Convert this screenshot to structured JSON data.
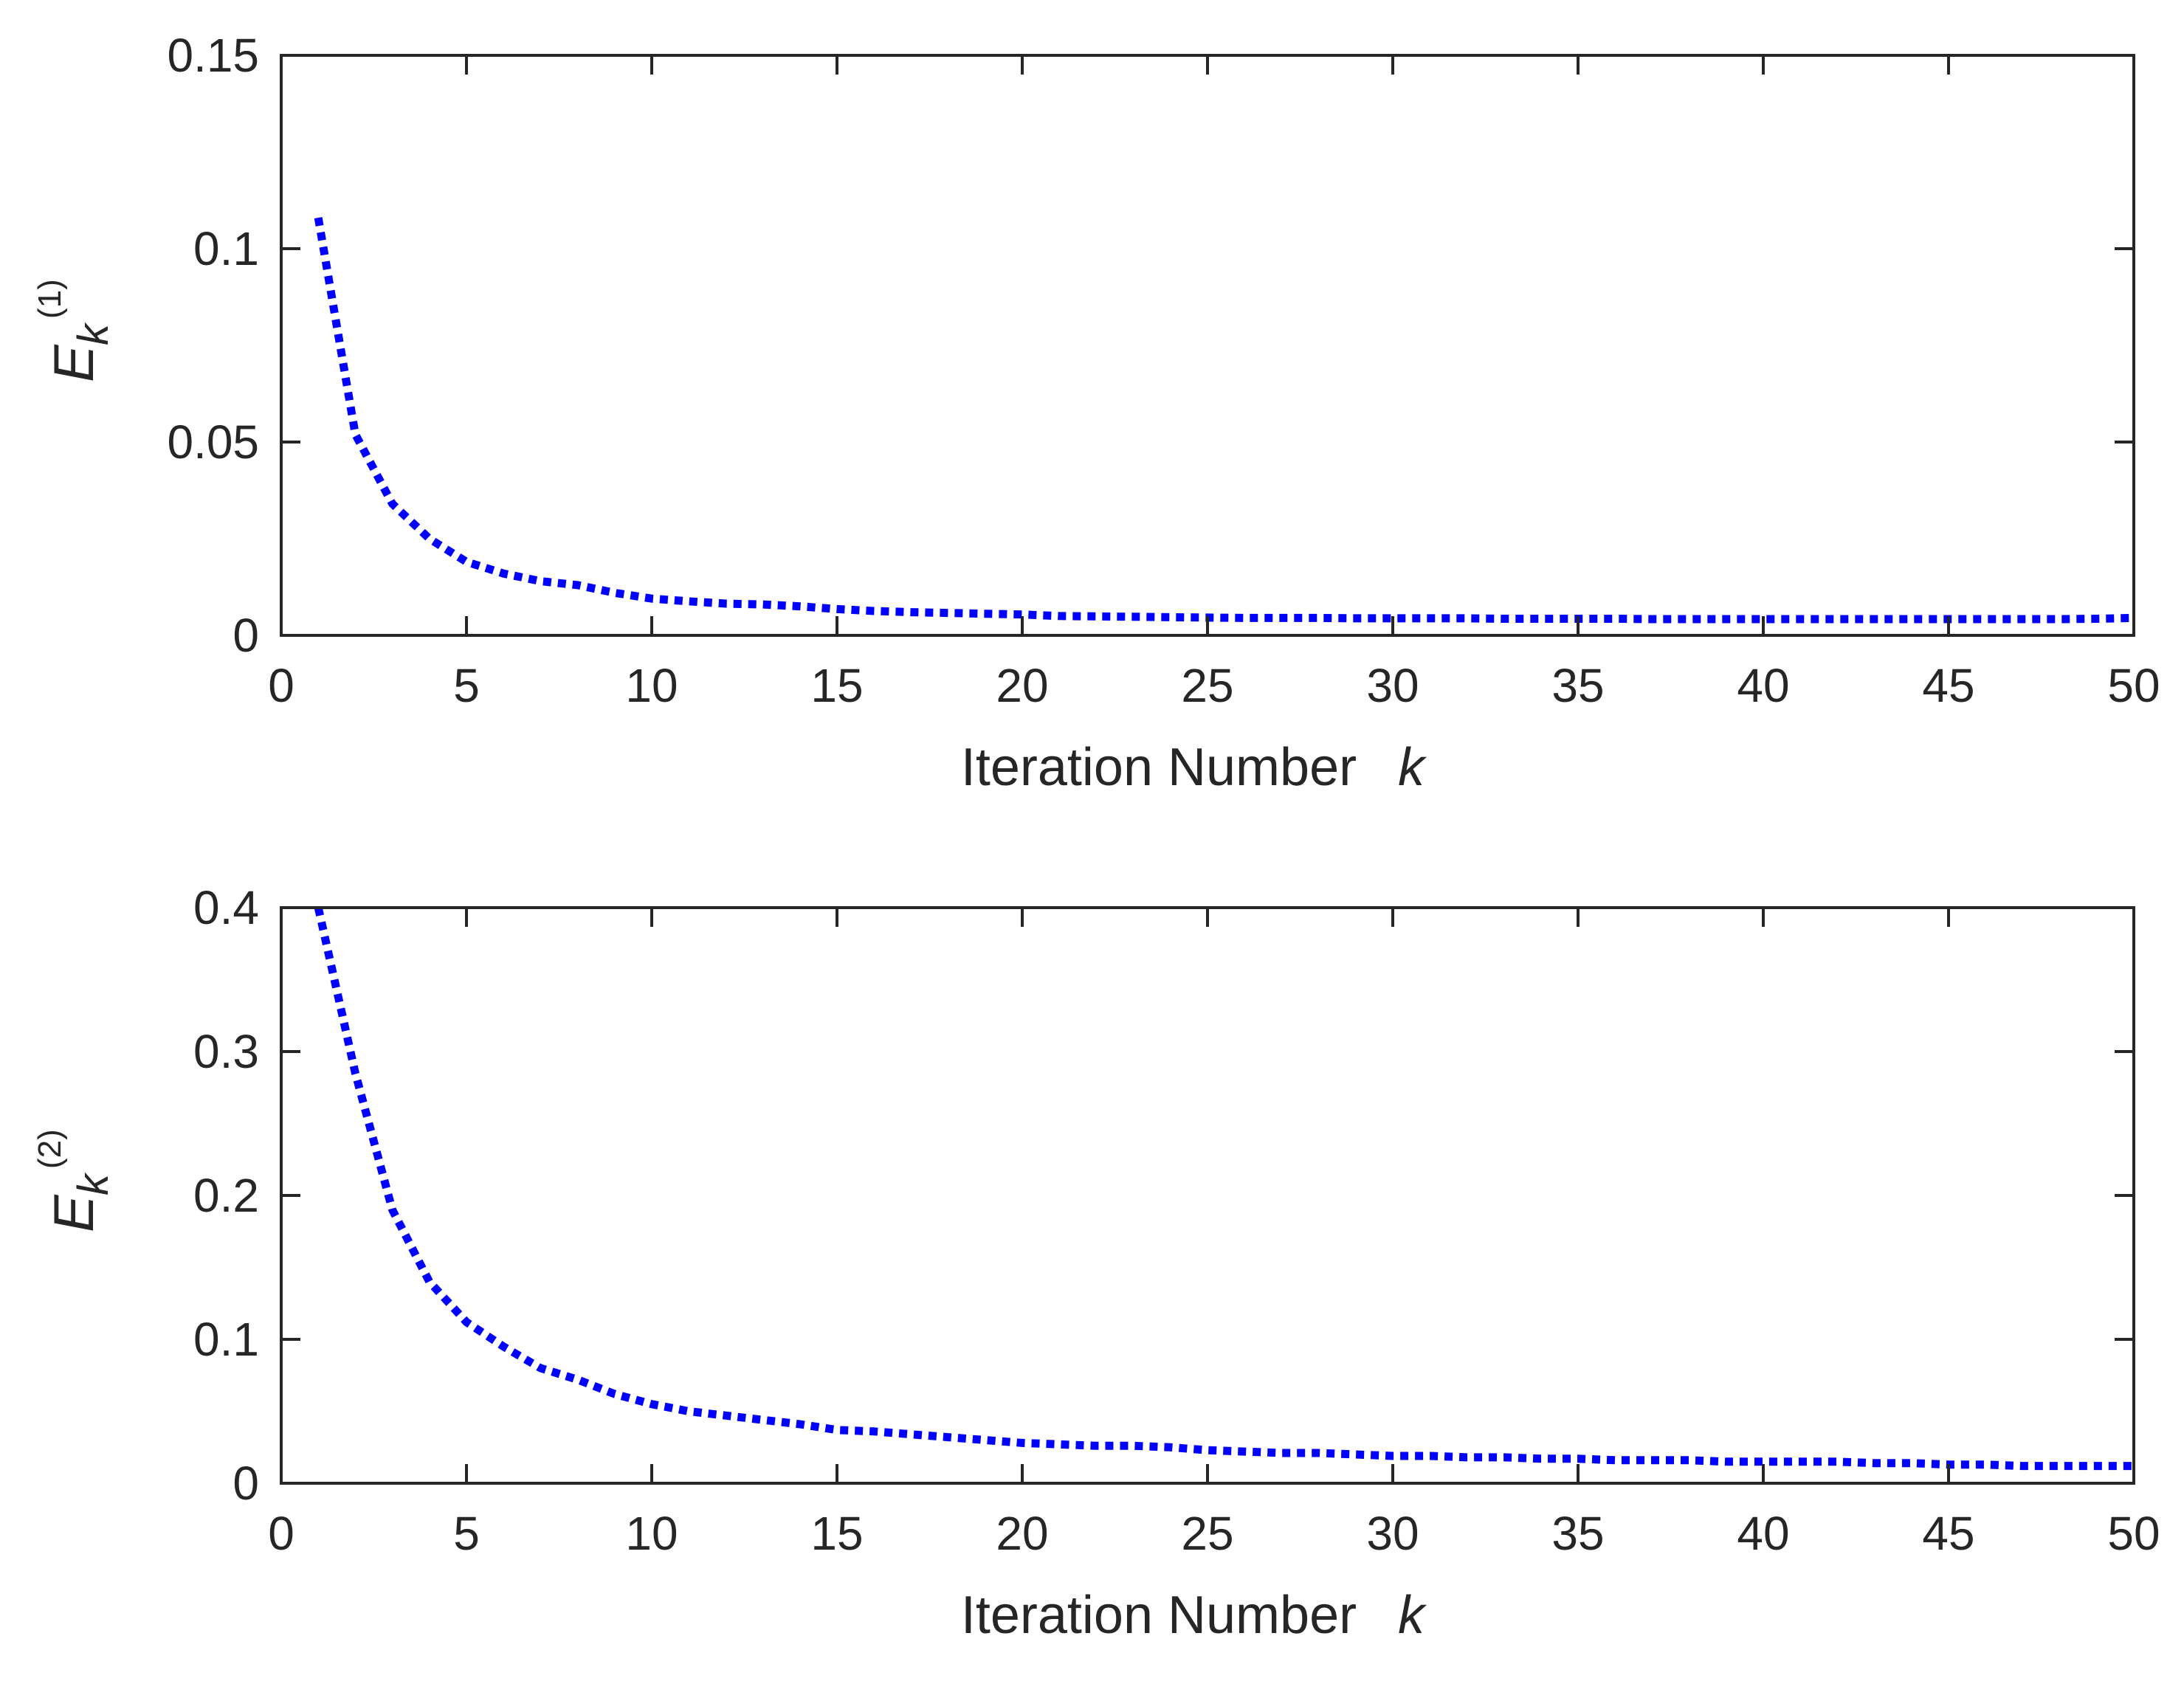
{
  "chart_data": [
    {
      "type": "line",
      "xlabel": "Iteration Number",
      "xlabel_var": "k",
      "ylabel": {
        "main": "E",
        "sub": "k",
        "sup": "(1)"
      },
      "xlim": [
        0,
        50
      ],
      "ylim": [
        0,
        0.15
      ],
      "xticks": [
        "0",
        "5",
        "10",
        "15",
        "20",
        "25",
        "30",
        "35",
        "40",
        "45",
        "50"
      ],
      "yticks": [
        "0",
        "0.05",
        "0.1",
        "0.15"
      ],
      "xtick_values": [
        0,
        5,
        10,
        15,
        20,
        25,
        30,
        35,
        40,
        45,
        50
      ],
      "ytick_values": [
        0,
        0.05,
        0.1,
        0.15
      ],
      "grid": false,
      "line_style": "dotted",
      "line_color": "#0000ff",
      "series": [
        {
          "x": [
            1,
            2,
            3,
            4,
            5,
            6,
            7,
            8,
            9,
            10,
            11,
            12,
            13,
            14,
            15,
            16,
            17,
            18,
            19,
            20,
            21,
            22,
            23,
            24,
            25,
            26,
            27,
            28,
            29,
            30,
            31,
            32,
            33,
            34,
            35,
            36,
            37,
            38,
            39,
            40,
            41,
            42,
            43,
            44,
            45,
            46,
            47,
            48,
            49,
            50
          ],
          "values": [
            0.108,
            0.052,
            0.034,
            0.025,
            0.019,
            0.016,
            0.014,
            0.013,
            0.011,
            0.0095,
            0.0088,
            0.0082,
            0.008,
            0.0075,
            0.0068,
            0.0063,
            0.006,
            0.0058,
            0.0056,
            0.0054,
            0.005,
            0.0049,
            0.0048,
            0.0047,
            0.0046,
            0.0045,
            0.0045,
            0.0045,
            0.0044,
            0.0044,
            0.0044,
            0.0044,
            0.0043,
            0.0043,
            0.0043,
            0.0043,
            0.0042,
            0.0042,
            0.0042,
            0.0042,
            0.0042,
            0.0042,
            0.0042,
            0.0042,
            0.0042,
            0.0042,
            0.0042,
            0.0042,
            0.0043,
            0.0045
          ]
        }
      ]
    },
    {
      "type": "line",
      "xlabel": "Iteration Number",
      "xlabel_var": "k",
      "ylabel": {
        "main": "E",
        "sub": "k",
        "sup": "(2)"
      },
      "xlim": [
        0,
        50
      ],
      "ylim": [
        0,
        0.4
      ],
      "xticks": [
        "0",
        "5",
        "10",
        "15",
        "20",
        "25",
        "30",
        "35",
        "40",
        "45",
        "50"
      ],
      "yticks": [
        "0",
        "0.1",
        "0.2",
        "0.3",
        "0.4"
      ],
      "xtick_values": [
        0,
        5,
        10,
        15,
        20,
        25,
        30,
        35,
        40,
        45,
        50
      ],
      "ytick_values": [
        0,
        0.1,
        0.2,
        0.3,
        0.4
      ],
      "grid": false,
      "line_style": "dotted",
      "line_color": "#0000ff",
      "series": [
        {
          "x": [
            1,
            2,
            3,
            4,
            5,
            6,
            7,
            8,
            9,
            10,
            11,
            12,
            13,
            14,
            15,
            16,
            17,
            18,
            19,
            20,
            21,
            22,
            23,
            24,
            25,
            26,
            27,
            28,
            29,
            30,
            31,
            32,
            33,
            34,
            35,
            36,
            37,
            38,
            39,
            40,
            41,
            42,
            43,
            44,
            45,
            46,
            47,
            48,
            49,
            50
          ],
          "values": [
            0.4,
            0.285,
            0.19,
            0.14,
            0.112,
            0.095,
            0.08,
            0.072,
            0.062,
            0.055,
            0.05,
            0.047,
            0.044,
            0.041,
            0.037,
            0.036,
            0.034,
            0.032,
            0.03,
            0.028,
            0.027,
            0.026,
            0.026,
            0.025,
            0.023,
            0.022,
            0.021,
            0.021,
            0.02,
            0.019,
            0.019,
            0.018,
            0.018,
            0.017,
            0.017,
            0.016,
            0.016,
            0.016,
            0.015,
            0.015,
            0.015,
            0.015,
            0.014,
            0.014,
            0.013,
            0.013,
            0.012,
            0.012,
            0.012,
            0.012
          ]
        }
      ]
    }
  ]
}
